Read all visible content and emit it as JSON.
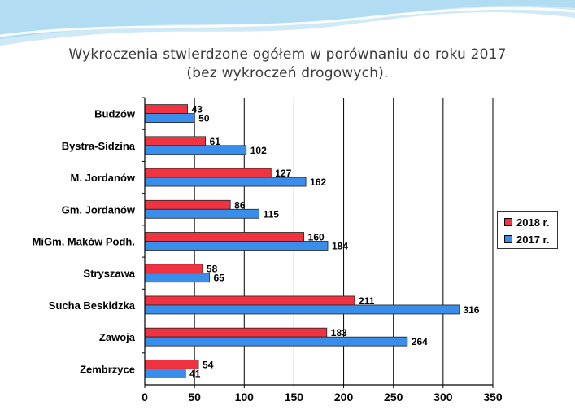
{
  "slide": {
    "title_line1": "Wykroczenia stwierdzone ogółem w porównaniu do roku 2017",
    "title_line2": "(bez wykroczeń drogowych)."
  },
  "colors": {
    "series_2018": "#ef3340",
    "series_2017": "#3a8eeb",
    "wave_top": "#b9dff2",
    "wave_mid": "#8fc9e8"
  },
  "chart_data": {
    "type": "bar",
    "orientation": "horizontal",
    "categories": [
      "Budzów",
      "Bystra-Sidzina",
      "M. Jordanów",
      "Gm. Jordanów",
      "MiGm. Maków Podh.",
      "Stryszawa",
      "Sucha Beskidzka",
      "Zawoja",
      "Zembrzyce"
    ],
    "series": [
      {
        "name": "2018 r.",
        "values": [
          43,
          61,
          127,
          86,
          160,
          58,
          211,
          183,
          54
        ]
      },
      {
        "name": "2017 r.",
        "values": [
          50,
          102,
          162,
          115,
          184,
          65,
          316,
          264,
          41
        ]
      }
    ],
    "title": "Wykroczenia stwierdzone ogółem w porównaniu do roku 2017 (bez wykroczeń drogowych).",
    "xlim": [
      0,
      350
    ],
    "xticks": [
      0,
      50,
      100,
      150,
      200,
      250,
      300,
      350
    ],
    "grid": true,
    "legend_position": "right"
  }
}
